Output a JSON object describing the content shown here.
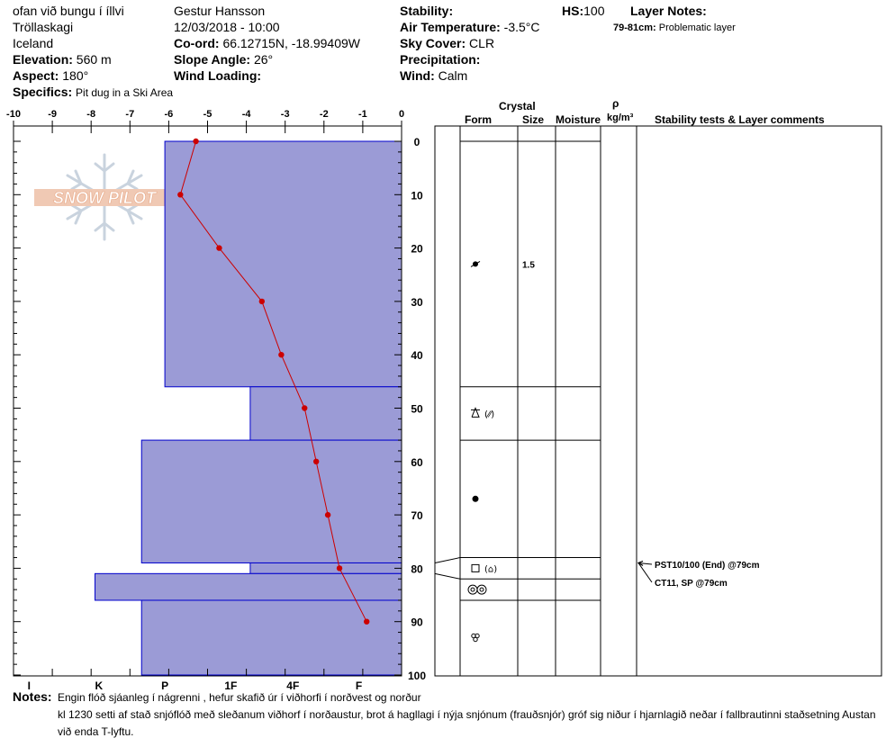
{
  "header": {
    "location": "ofan við bungu í íllvi",
    "region": "Tröllaskagi",
    "country": "Iceland",
    "elevation_label": "Elevation:",
    "elevation": "560 m",
    "aspect_label": "Aspect:",
    "aspect": "180°",
    "specifics_label": "Specifics:",
    "specifics": "Pit dug in a Ski Area",
    "observer": "Gestur Hansson",
    "datetime": "12/03/2018 - 10:00",
    "coord_label": "Co-ord:",
    "coord": "66.12715N, -18.99409W",
    "slope_label": "Slope Angle:",
    "slope": "26°",
    "wind_loading_label": "Wind Loading:",
    "wind_loading": "",
    "stability_label": "Stability:",
    "stability": "",
    "air_temp_label": "Air Temperature:",
    "air_temp": "-3.5°C",
    "sky_label": "Sky Cover:",
    "sky": "CLR",
    "precip_label": "Precipitation:",
    "precip": "",
    "wind_label": "Wind:",
    "wind": "Calm",
    "hs_label": "HS:",
    "hs": "100",
    "layer_notes_label": "Layer Notes:",
    "layer_note_range": "79-81cm:",
    "layer_note_text": "Problematic layer"
  },
  "logo_text": "SNOW PILOT",
  "table": {
    "crystal_header": "Crystal",
    "form_header": "Form",
    "size_header": "Size",
    "moisture_header": "Moisture",
    "rho_header": "ρ",
    "density_unit": "kg/m³",
    "stability_header": "Stability tests & Layer comments",
    "layer_boundaries": [
      0,
      46,
      56,
      78,
      82,
      86,
      100
    ],
    "layers": [
      {
        "depth": 23,
        "form_icon": "round-grain-icon",
        "size": "1.5"
      },
      {
        "depth": 51,
        "form_icon": "faceted-decomposing-icon",
        "form_text": "(⁄⁄)",
        "size": ""
      },
      {
        "depth": 67,
        "form_icon": "rounded-grain-icon",
        "size": ""
      },
      {
        "depth": 80,
        "form_icon": "faceted-crystal-icon",
        "form_text": "(⌂)",
        "size": ""
      },
      {
        "depth": 84,
        "form_icon": "ice-layer-icon",
        "size": ""
      },
      {
        "depth": 93,
        "form_icon": "melt-freeze-icon",
        "size": ""
      }
    ],
    "stability_tests": [
      {
        "text": "PST10/100 (End) @79cm",
        "depth": 79
      },
      {
        "text": "CT11, SP @79cm",
        "depth": 79
      }
    ]
  },
  "notes_label": "Notes:",
  "notes": [
    "Engin flóð sjáanleg í nágrenni , hefur skafið úr í viðhorfi í norðvest og norður",
    "kl 1230 setti af stað snjóflóð með sleðanum viðhorf í norðaustur, brot á hagllagi í nýja snjónum (frauðsnjór) gróf sig niður í hjarnlagið neðar í fallbrautinni staðsetning Austan",
    "við enda T-lyftu."
  ],
  "chart_data": {
    "type": "line",
    "temperature_axis": {
      "ticks": [
        -10,
        -9,
        -8,
        -7,
        -6,
        -5,
        -4,
        -3,
        -2,
        -1,
        0
      ],
      "range": [
        -10,
        0
      ]
    },
    "depth_axis": {
      "ticks": [
        0,
        10,
        20,
        30,
        40,
        50,
        60,
        70,
        80,
        90,
        100
      ],
      "range": [
        0,
        100
      ]
    },
    "hardness_axis": {
      "labels": [
        "I",
        "K",
        "P",
        "1F",
        "4F",
        "F"
      ],
      "label_temps": [
        -9.6,
        -7.8,
        -6.1,
        -4.4,
        -2.8,
        -1.1
      ]
    },
    "temperature_profile": [
      {
        "depth": 0,
        "temp": -5.3
      },
      {
        "depth": 10,
        "temp": -5.7
      },
      {
        "depth": 20,
        "temp": -4.7
      },
      {
        "depth": 30,
        "temp": -3.6
      },
      {
        "depth": 40,
        "temp": -3.1
      },
      {
        "depth": 50,
        "temp": -2.5
      },
      {
        "depth": 60,
        "temp": -2.2
      },
      {
        "depth": 70,
        "temp": -1.9
      },
      {
        "depth": 80,
        "temp": -1.6
      },
      {
        "depth": 90,
        "temp": -0.9
      }
    ],
    "hardness_profile": [
      {
        "top": 0,
        "bottom": 46,
        "temp": -6.1
      },
      {
        "top": 46,
        "bottom": 56,
        "temp": -3.9
      },
      {
        "top": 56,
        "bottom": 79,
        "temp": -6.7
      },
      {
        "top": 79,
        "bottom": 81,
        "temp": -3.9
      },
      {
        "top": 81,
        "bottom": 86,
        "temp": -7.9
      },
      {
        "top": 86,
        "bottom": 100,
        "temp": -6.7
      }
    ],
    "colors": {
      "hardness": "#9b9bd6",
      "hardness_edge": "#0000cc",
      "temp": "#cc0000"
    }
  }
}
